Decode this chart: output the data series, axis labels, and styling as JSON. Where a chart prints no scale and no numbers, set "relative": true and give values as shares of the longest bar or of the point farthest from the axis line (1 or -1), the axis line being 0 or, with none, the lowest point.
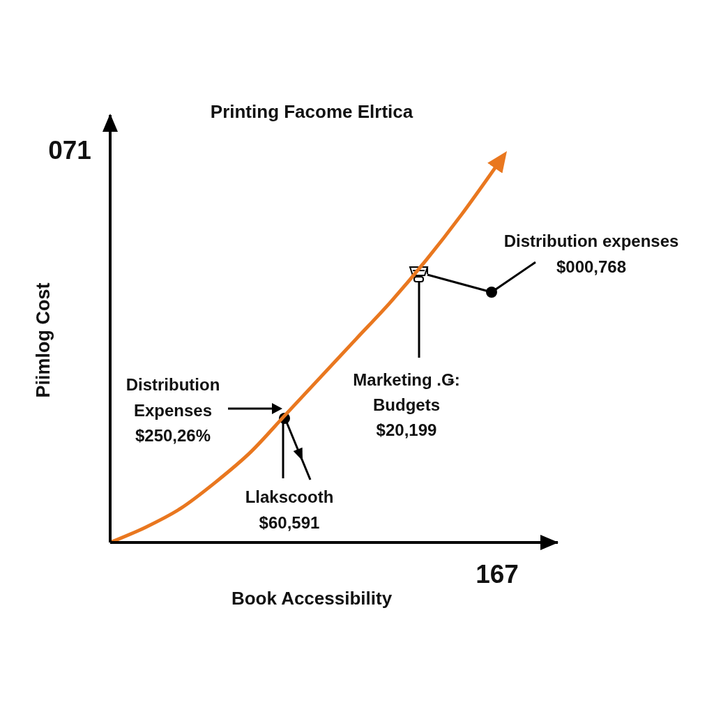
{
  "chart_data": {
    "type": "line",
    "title": "Printing Facome Elrtica",
    "xlabel": "Book Accessibility",
    "ylabel": "Piimlog Cost",
    "relative": true,
    "categories": [
      null,
      null,
      null,
      null,
      null,
      null,
      null,
      null,
      null,
      null,
      null,
      null
    ],
    "values": [
      0,
      0.04,
      0.09,
      0.16,
      0.24,
      0.34,
      0.44,
      0.54,
      0.64,
      0.75,
      0.87,
      1
    ],
    "color": "#e9771f",
    "annotations": [
      "071",
      "167",
      "Distribution\nExpenses\n$250,26%",
      "Llakscooth\n$60,591",
      "Marketing .Ǥ:\nBudgets\n$20,199",
      "Distribution expenses\n$000,768"
    ]
  }
}
